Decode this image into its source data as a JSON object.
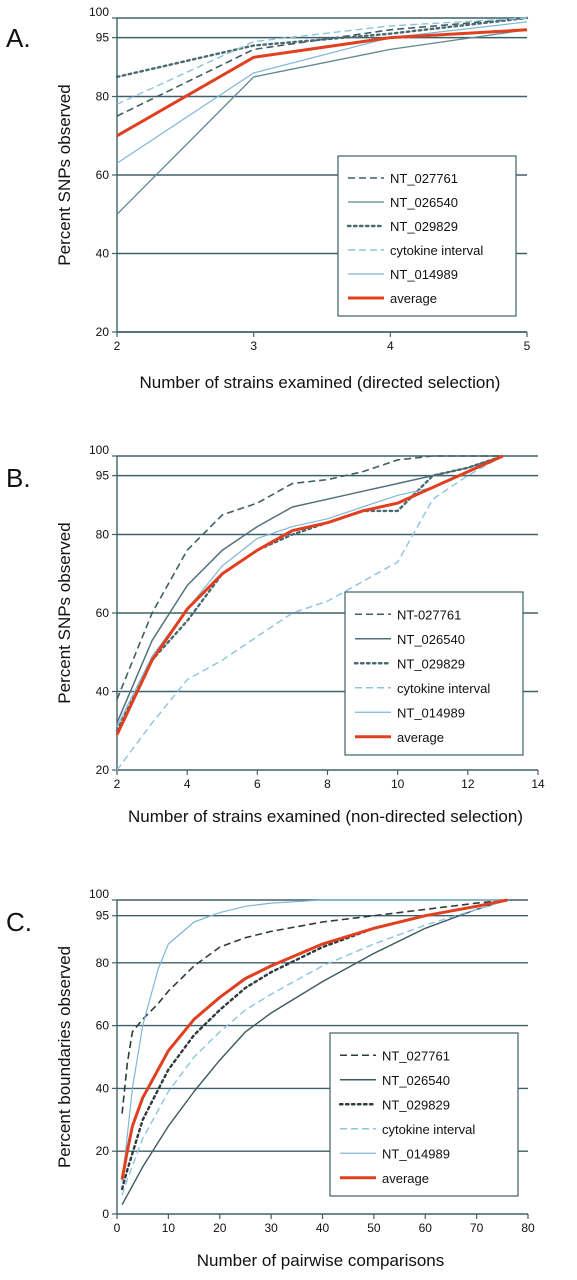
{
  "chart_data": [
    {
      "panel": "A.",
      "type": "line",
      "xlabel": "Number of strains examined (directed selection)",
      "ylabel": "Percent SNPs observed",
      "xlim": [
        2,
        5
      ],
      "ylim": [
        20,
        100
      ],
      "xticks": [
        2,
        3,
        4,
        5
      ],
      "yticks": [
        20,
        40,
        60,
        80,
        95,
        100
      ],
      "grid": "horizontal",
      "legend_position": "bottom-right",
      "series": [
        {
          "name": "NT_027761",
          "color": "#3f5f66",
          "dash": "dashed",
          "width": 1.6,
          "x": [
            2,
            3,
            4,
            5
          ],
          "y": [
            75,
            92,
            97,
            100
          ]
        },
        {
          "name": "NT_026540",
          "color": "#5d8791",
          "dash": "solid",
          "width": 1.3,
          "x": [
            2,
            3,
            4,
            5
          ],
          "y": [
            50,
            85,
            92,
            97
          ]
        },
        {
          "name": "NT_029829",
          "color": "#4a6a72",
          "dash": "dotted",
          "width": 2.4,
          "x": [
            2,
            3,
            4,
            5
          ],
          "y": [
            85,
            93,
            96,
            100
          ]
        },
        {
          "name": "cytokine interval",
          "color": "#8ec3e0",
          "dash": "dashed",
          "width": 1.4,
          "x": [
            2,
            3,
            4,
            5
          ],
          "y": [
            78,
            94,
            98,
            100
          ]
        },
        {
          "name": "NT_014989",
          "color": "#7fb6d8",
          "dash": "solid",
          "width": 1.2,
          "x": [
            2,
            3,
            4,
            5
          ],
          "y": [
            63,
            86,
            95,
            99
          ]
        },
        {
          "name": "average",
          "color": "#e0401f",
          "dash": "solid",
          "width": 3,
          "x": [
            2,
            3,
            4,
            5
          ],
          "y": [
            70,
            90,
            95,
            97
          ]
        }
      ]
    },
    {
      "panel": "B.",
      "type": "line",
      "xlabel": "Number of strains examined (non-directed selection)",
      "ylabel": "Percent SNPs observed",
      "xlim": [
        2,
        14
      ],
      "ylim": [
        20,
        100
      ],
      "xticks": [
        2,
        4,
        6,
        8,
        10,
        12,
        14
      ],
      "yticks": [
        20,
        40,
        60,
        80,
        95,
        100
      ],
      "grid": "horizontal",
      "legend_position": "bottom-right",
      "series": [
        {
          "name": "NT-027761",
          "color": "#3f5f66",
          "dash": "dashed",
          "width": 1.6,
          "x": [
            2,
            3,
            4,
            5,
            6,
            7,
            8,
            9,
            10,
            11,
            12,
            13
          ],
          "y": [
            38,
            60,
            76,
            85,
            88,
            93,
            94,
            96,
            99,
            100,
            100,
            100
          ]
        },
        {
          "name": "NT_026540",
          "color": "#4f727a",
          "dash": "solid",
          "width": 1.5,
          "x": [
            2,
            3,
            4,
            5,
            6,
            7,
            8,
            9,
            10,
            11,
            12,
            13
          ],
          "y": [
            32,
            53,
            67,
            76,
            82,
            87,
            89,
            91,
            93,
            95,
            97,
            100
          ]
        },
        {
          "name": "NT_029829",
          "color": "#4a6a72",
          "dash": "dotted",
          "width": 2.4,
          "x": [
            2,
            3,
            4,
            5,
            6,
            7,
            8,
            9,
            10,
            11,
            12,
            13
          ],
          "y": [
            30,
            48,
            58,
            70,
            76,
            80,
            83,
            86,
            86,
            95,
            97,
            100
          ]
        },
        {
          "name": "cytokine interval",
          "color": "#8ec3e0",
          "dash": "dashed",
          "width": 1.4,
          "x": [
            2,
            3,
            4,
            5,
            6,
            7,
            8,
            9,
            10,
            11,
            12,
            13
          ],
          "y": [
            20,
            32,
            43,
            48,
            54,
            60,
            63,
            68,
            73,
            89,
            95,
            100
          ]
        },
        {
          "name": "NT_014989",
          "color": "#7fb6d8",
          "dash": "solid",
          "width": 1.2,
          "x": [
            2,
            3,
            4,
            5,
            6,
            7,
            8,
            9,
            10,
            11,
            12,
            13
          ],
          "y": [
            31,
            49,
            61,
            72,
            79,
            82,
            84,
            87,
            90,
            92,
            96,
            100
          ]
        },
        {
          "name": "average",
          "color": "#e0401f",
          "dash": "solid",
          "width": 3,
          "x": [
            2,
            3,
            4,
            5,
            6,
            7,
            8,
            9,
            10,
            11,
            12,
            13
          ],
          "y": [
            29,
            48,
            61,
            70,
            76,
            81,
            83,
            86,
            88,
            92,
            96,
            100
          ]
        }
      ]
    },
    {
      "panel": "C.",
      "type": "line",
      "xlabel": "Number of pairwise comparisons",
      "ylabel": "Percent boundaries observed",
      "xlim": [
        0,
        80
      ],
      "ylim": [
        0,
        100
      ],
      "xticks": [
        0,
        10,
        20,
        30,
        40,
        50,
        60,
        70,
        80
      ],
      "yticks": [
        0,
        20,
        40,
        60,
        80,
        95,
        100
      ],
      "grid": "horizontal",
      "legend_position": "bottom-right",
      "series": [
        {
          "name": "NT_027761",
          "color": "#2e3b3e",
          "dash": "dashed",
          "width": 1.6,
          "x": [
            1,
            2,
            3,
            5,
            8,
            10,
            15,
            20,
            25,
            30,
            40,
            50,
            60,
            70,
            76
          ],
          "y": [
            32,
            48,
            58,
            62,
            67,
            71,
            79,
            85,
            88,
            90,
            93,
            95,
            97,
            99,
            100
          ]
        },
        {
          "name": "NT_026540",
          "color": "#3d5a61",
          "dash": "solid",
          "width": 1.4,
          "x": [
            1,
            2,
            5,
            10,
            15,
            20,
            25,
            30,
            40,
            50,
            60,
            70,
            76
          ],
          "y": [
            3,
            6,
            15,
            28,
            39,
            49,
            58,
            64,
            74,
            83,
            91,
            97,
            100
          ]
        },
        {
          "name": "NT_029829",
          "color": "#2e3b3e",
          "dash": "dotted",
          "width": 2.4,
          "x": [
            1,
            2,
            5,
            10,
            15,
            20,
            25,
            30,
            40,
            50,
            60,
            70,
            76
          ],
          "y": [
            8,
            14,
            30,
            46,
            57,
            65,
            72,
            77,
            85,
            91,
            95,
            98,
            100
          ]
        },
        {
          "name": "cytokine interval",
          "color": "#8ec3e0",
          "dash": "dashed",
          "width": 1.4,
          "x": [
            1,
            2,
            5,
            10,
            15,
            20,
            25,
            30,
            40,
            50,
            60,
            70,
            76
          ],
          "y": [
            6,
            11,
            24,
            39,
            50,
            58,
            65,
            70,
            79,
            86,
            92,
            97,
            100
          ]
        },
        {
          "name": "NT_014989",
          "color": "#7fb6d8",
          "dash": "solid",
          "width": 1.2,
          "x": [
            1,
            2,
            3,
            5,
            8,
            10,
            15,
            20,
            25,
            30,
            40,
            50,
            60,
            76
          ],
          "y": [
            10,
            25,
            40,
            60,
            78,
            86,
            93,
            96,
            98,
            99,
            100,
            100,
            100,
            100
          ]
        },
        {
          "name": "average",
          "color": "#e0401f",
          "dash": "solid",
          "width": 3,
          "x": [
            1,
            2,
            3,
            5,
            8,
            10,
            15,
            20,
            25,
            30,
            40,
            50,
            60,
            70,
            76
          ],
          "y": [
            11,
            20,
            28,
            37,
            46,
            52,
            62,
            69,
            75,
            79,
            86,
            91,
            95,
            98,
            100
          ]
        }
      ]
    }
  ]
}
